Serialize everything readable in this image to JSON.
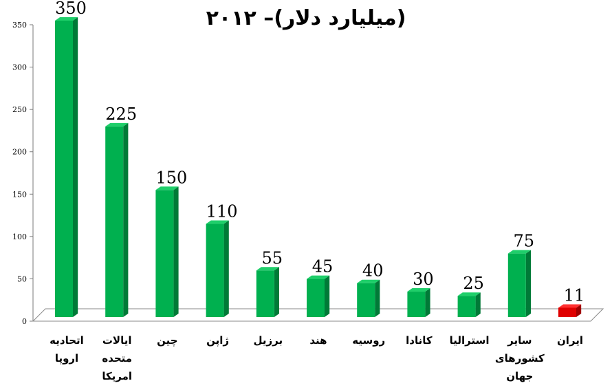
{
  "chart_data": {
    "type": "bar",
    "title": "(میلیارد دلار)– ۲۰۱۲",
    "categories": [
      [
        "اتحادیه",
        "اروپا"
      ],
      [
        "ایالات",
        "متحده",
        "امریکا"
      ],
      [
        "چین"
      ],
      [
        "ژاپن"
      ],
      [
        "برزیل"
      ],
      [
        "هند"
      ],
      [
        "روسیه"
      ],
      [
        "کانادا"
      ],
      [
        "استرالیا"
      ],
      [
        "سایر",
        "کشورهای",
        "جهان"
      ],
      [
        "ایران"
      ]
    ],
    "values": [
      350,
      225,
      150,
      110,
      55,
      45,
      40,
      30,
      25,
      75,
      11
    ],
    "yticks": [
      "0",
      "50",
      "100",
      "150",
      "200",
      "250",
      "300",
      "350"
    ],
    "ylim": [
      0,
      350
    ],
    "grid": false,
    "colors": {
      "bar": "#00b04f",
      "bar_side": "#007a37",
      "bar_top": "#1fcf6a",
      "highlight": "#e00000",
      "highlight_side": "#a00000",
      "highlight_top": "#ff3030"
    },
    "highlight_index": 10
  }
}
